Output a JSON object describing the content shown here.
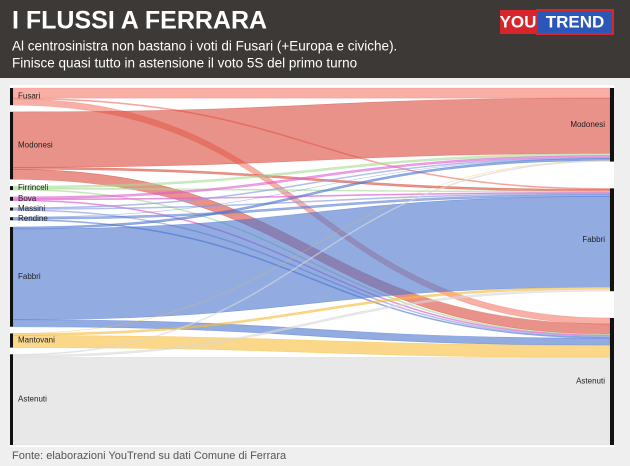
{
  "header": {
    "title": "I FLUSSI A FERRARA",
    "logo_left": "YOU",
    "logo_right": "TREND",
    "subtitle_lines": [
      "Al centrosinistra non bastano i voti di Fusari (+Europa e civiche).",
      "Finisce quasi tutto in astensione il voto 5S del primo turno"
    ]
  },
  "chart_data": {
    "type": "sankey",
    "categories": [
      "Modonesi",
      "Fabbri",
      "Astenuti"
    ],
    "series": [
      {
        "name": "Fusari",
        "color": "#f4796b",
        "values": [
          10,
          1,
          6
        ]
      },
      {
        "name": "Modonesi",
        "color": "#d9493b",
        "values": [
          55,
          2,
          10
        ]
      },
      {
        "name": "Firrinceli",
        "color": "#a9dc98",
        "values": [
          2,
          1,
          1
        ]
      },
      {
        "name": "Bova",
        "color": "#e05fcf",
        "values": [
          2,
          1,
          1
        ]
      },
      {
        "name": "Massini",
        "color": "#8f9fe6",
        "values": [
          1,
          1,
          1
        ]
      },
      {
        "name": "Rendine",
        "color": "#5b7fd6",
        "values": [
          0,
          2,
          1
        ]
      },
      {
        "name": "Fabbri",
        "color": "#4a74cf",
        "values": [
          2,
          90,
          7
        ]
      },
      {
        "name": "Mantovani",
        "color": "#f6bd3a",
        "values": [
          0,
          2,
          12
        ]
      },
      {
        "name": "Astenuti",
        "color": "#d9d9d9",
        "values": [
          1,
          2,
          87
        ]
      }
    ]
  },
  "footer": {
    "source": "Fonte: elaborazioni YouTrend su dati Comune di Ferrara"
  }
}
